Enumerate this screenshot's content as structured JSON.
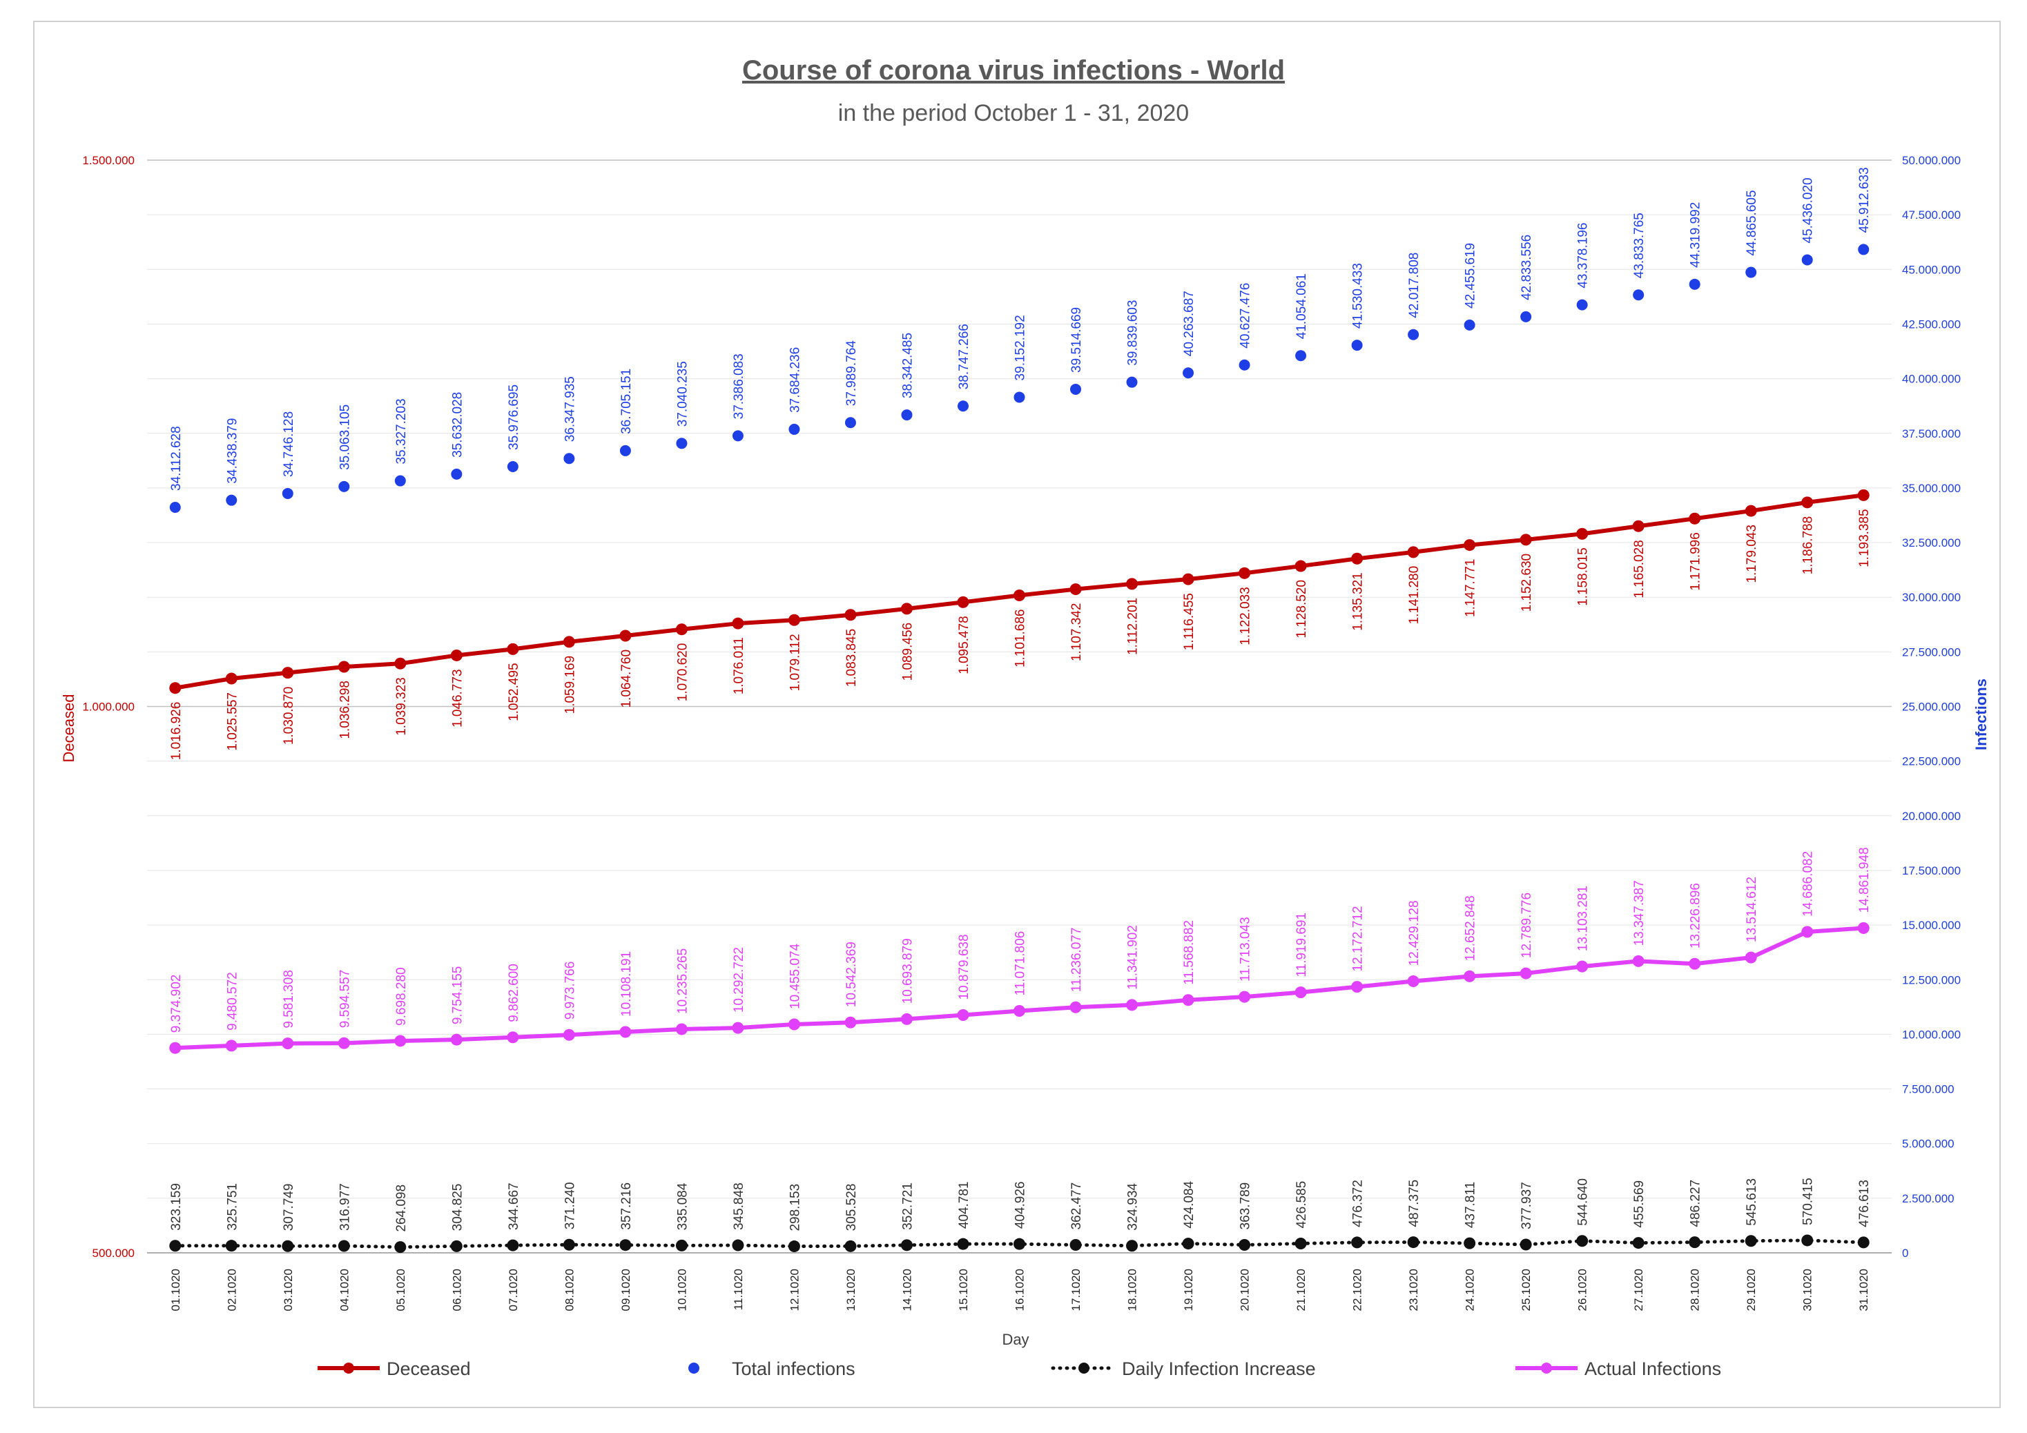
{
  "chart_data": {
    "type": "line",
    "title": "Course of corona virus infections - World",
    "subtitle": "in the period October 1 - 31, 2020",
    "xlabel": "Day",
    "ylabel_left": "Deceased",
    "ylabel_right": "Infections",
    "ylim_left": [
      500000,
      1500000
    ],
    "ylim_right": [
      0,
      50000000
    ],
    "left_ticks": [
      "500.000",
      "1.000.000",
      "1.500.000"
    ],
    "right_ticks": [
      "0",
      "2.500.000",
      "5.000.000",
      "7.500.000",
      "10.000.000",
      "12.500.000",
      "15.000.000",
      "17.500.000",
      "20.000.000",
      "22.500.000",
      "25.000.000",
      "27.500.000",
      "30.000.000",
      "32.500.000",
      "35.000.000",
      "37.500.000",
      "40.000.000",
      "42.500.000",
      "45.000.000",
      "47.500.000",
      "50.000.000"
    ],
    "grid": true,
    "legend_position": "bottom",
    "categories": [
      "01.1020",
      "02.1020",
      "03.1020",
      "04.1020",
      "05.1020",
      "06.1020",
      "07.1020",
      "08.1020",
      "09.1020",
      "10.1020",
      "11.1020",
      "12.1020",
      "13.1020",
      "14.1020",
      "15.1020",
      "16.1020",
      "17.1020",
      "18.1020",
      "19.1020",
      "20.1020",
      "21.1020",
      "22.1020",
      "23.1020",
      "24.1020",
      "25.1020",
      "26.1020",
      "27.1020",
      "28.1020",
      "29.1020",
      "30.1020",
      "31.1020"
    ],
    "series": [
      {
        "name": "Deceased",
        "axis": "left",
        "style": "line",
        "color": "#c00000",
        "values": [
          1016926,
          1025557,
          1030870,
          1036298,
          1039323,
          1046773,
          1052495,
          1059169,
          1064760,
          1070620,
          1076011,
          1079112,
          1083845,
          1089456,
          1095478,
          1101686,
          1107342,
          1112201,
          1116455,
          1122033,
          1128520,
          1135321,
          1141280,
          1147771,
          1152630,
          1158015,
          1165028,
          1171996,
          1179043,
          1186788,
          1193385
        ],
        "labels": [
          "1.016.926",
          "1.025.557",
          "1.030.870",
          "1.036.298",
          "1.039.323",
          "1.046.773",
          "1.052.495",
          "1.059.169",
          "1.064.760",
          "1.070.620",
          "1.076.011",
          "1.079.112",
          "1.083.845",
          "1.089.456",
          "1.095.478",
          "1.101.686",
          "1.107.342",
          "1.112.201",
          "1.116.455",
          "1.122.033",
          "1.128.520",
          "1.135.321",
          "1.141.280",
          "1.147.771",
          "1.152.630",
          "1.158.015",
          "1.165.028",
          "1.171.996",
          "1.179.043",
          "1.186.788",
          "1.193.385"
        ]
      },
      {
        "name": "Total infections",
        "axis": "right",
        "style": "scatter",
        "color": "#1f3fe6",
        "values": [
          34112628,
          34438379,
          34746128,
          35063105,
          35327203,
          35632028,
          35976695,
          36347935,
          36705151,
          37040235,
          37386083,
          37684236,
          37989764,
          38342485,
          38747266,
          39152192,
          39514669,
          39839603,
          40263687,
          40627476,
          41054061,
          41530433,
          42017808,
          42455619,
          42833556,
          43378196,
          43833765,
          44319992,
          44865605,
          45436020,
          45912633
        ],
        "labels": [
          "34.112.628",
          "34.438.379",
          "34.746.128",
          "35.063.105",
          "35.327.203",
          "35.632.028",
          "35.976.695",
          "36.347.935",
          "36.705.151",
          "37.040.235",
          "37.386.083",
          "37.684.236",
          "37.989.764",
          "38.342.485",
          "38.747.266",
          "39.152.192",
          "39.514.669",
          "39.839.603",
          "40.263.687",
          "40.627.476",
          "41.054.061",
          "41.530.433",
          "42.017.808",
          "42.455.619",
          "42.833.556",
          "43.378.196",
          "43.833.765",
          "44.319.992",
          "44.865.605",
          "45.436.020",
          "45.912.633"
        ]
      },
      {
        "name": "Daily Infection Increase",
        "axis": "right",
        "style": "dotted",
        "color": "#111111",
        "values": [
          323159,
          325751,
          307749,
          316977,
          264098,
          304825,
          344667,
          371240,
          357216,
          335084,
          345848,
          298153,
          305528,
          352721,
          404781,
          404926,
          362477,
          324934,
          424084,
          363789,
          426585,
          476372,
          487375,
          437811,
          377937,
          544640,
          455569,
          486227,
          545613,
          570415,
          476613
        ],
        "labels": [
          "323.159",
          "325.751",
          "307.749",
          "316.977",
          "264.098",
          "304.825",
          "344.667",
          "371.240",
          "357.216",
          "335.084",
          "345.848",
          "298.153",
          "305.528",
          "352.721",
          "404.781",
          "404.926",
          "362.477",
          "324.934",
          "424.084",
          "363.789",
          "426.585",
          "476.372",
          "487.375",
          "437.811",
          "377.937",
          "544.640",
          "455.569",
          "486.227",
          "545.613",
          "570.415",
          "476.613"
        ]
      },
      {
        "name": "Actual Infections",
        "axis": "right",
        "style": "line",
        "color": "#e040fb",
        "values": [
          9374902,
          9480572,
          9581308,
          9594557,
          9698280,
          9754155,
          9862600,
          9973766,
          10108191,
          10235265,
          10292722,
          10455074,
          10542369,
          10693879,
          10879638,
          11071806,
          11236077,
          11341902,
          11568882,
          11713043,
          11919691,
          12172712,
          12429128,
          12652848,
          12789776,
          13103281,
          13347387,
          13226896,
          13514612,
          14686082,
          14861948
        ],
        "labels": [
          "9.374.902",
          "9.480.572",
          "9.581.308",
          "9.594.557",
          "9.698.280",
          "9.754.155",
          "9.862.600",
          "9.973.766",
          "10.108.191",
          "10.235.265",
          "10.292.722",
          "10.455.074",
          "10.542.369",
          "10.693.879",
          "10.879.638",
          "11.071.806",
          "11.236.077",
          "11.341.902",
          "11.568.882",
          "11.713.043",
          "11.919.691",
          "12.172.712",
          "12.429.128",
          "12.652.848",
          "12.789.776",
          "13.103.281",
          "13.347.387",
          "13.226.896",
          "13.514.612",
          "14.686.082",
          "14.861.948"
        ]
      }
    ]
  }
}
